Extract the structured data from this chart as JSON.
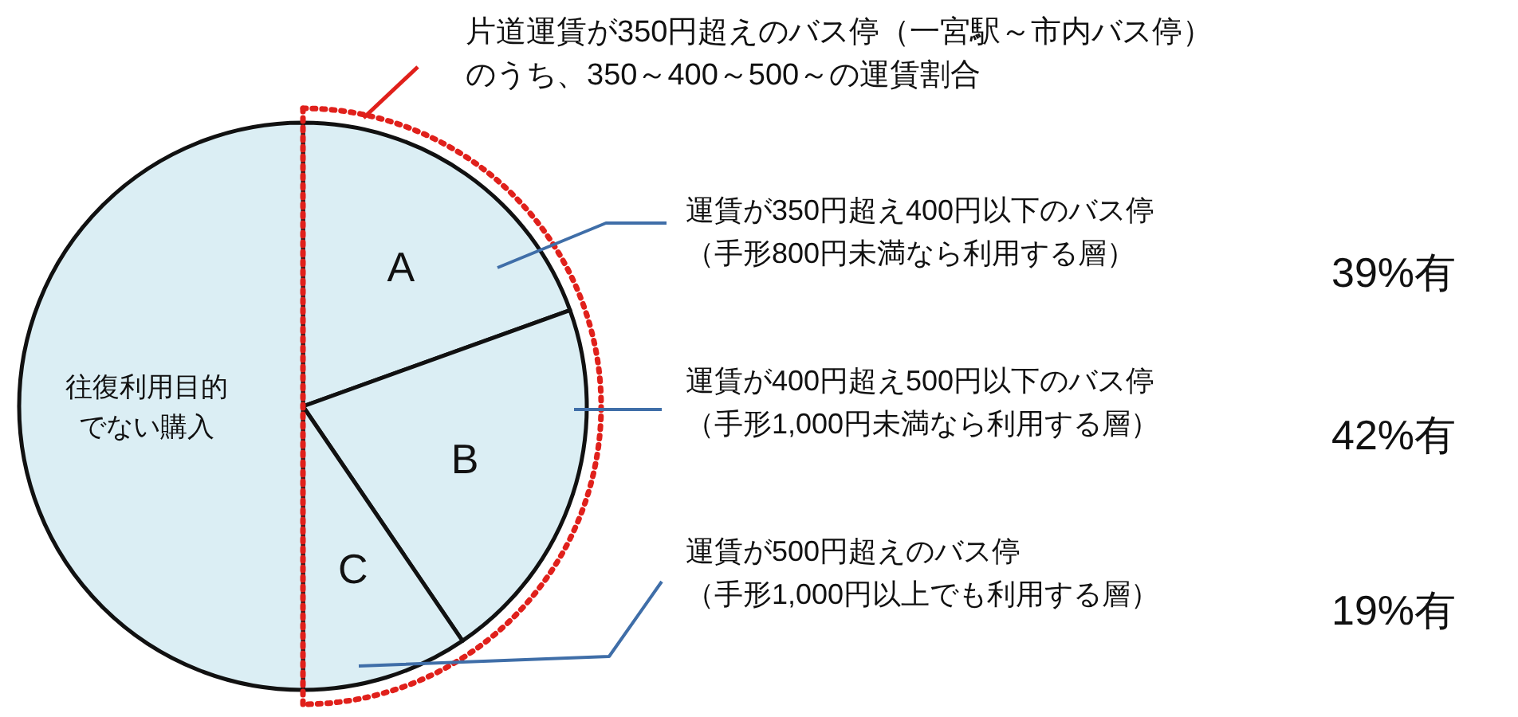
{
  "chart_data": {
    "type": "pie",
    "title": "片道運賃が350円超えのバス停（一宮駅～市内バス停）のうち、350～400～500～の運賃割合",
    "categories": [
      "A",
      "B",
      "C",
      "往復利用目的でない購入"
    ],
    "values": [
      19.5,
      21,
      9.5,
      50
    ],
    "colors": [
      "#dbeef4",
      "#dbeef4",
      "#dbeef4",
      "#dbeef4"
    ],
    "annotations": [
      "運賃が350円超え400円以下のバス停（手形800円未満なら利用する層）",
      "39%有",
      "運賃が400円超え500円以下のバス停（手形1,000円未満なら利用する層）",
      "42%有",
      "運賃が500円超えのバス停（手形1,000円以上でも利用する層）",
      "19%有"
    ]
  }
}
